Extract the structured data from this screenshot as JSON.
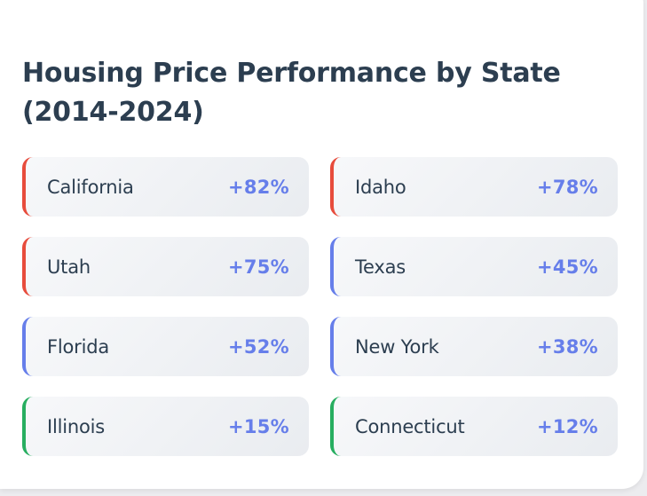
{
  "title": "Housing Price Performance by State (2014-2024)",
  "colors": {
    "high": "#e74c3c",
    "medium": "#667eea",
    "low": "#27ae60",
    "value": "#667eea",
    "text": "#2c3e50"
  },
  "states": [
    {
      "name": "California",
      "change": "+82%",
      "tier": "high"
    },
    {
      "name": "Idaho",
      "change": "+78%",
      "tier": "high"
    },
    {
      "name": "Utah",
      "change": "+75%",
      "tier": "high"
    },
    {
      "name": "Texas",
      "change": "+45%",
      "tier": "medium"
    },
    {
      "name": "Florida",
      "change": "+52%",
      "tier": "medium"
    },
    {
      "name": "New York",
      "change": "+38%",
      "tier": "medium"
    },
    {
      "name": "Illinois",
      "change": "+15%",
      "tier": "low"
    },
    {
      "name": "Connecticut",
      "change": "+12%",
      "tier": "low"
    }
  ]
}
